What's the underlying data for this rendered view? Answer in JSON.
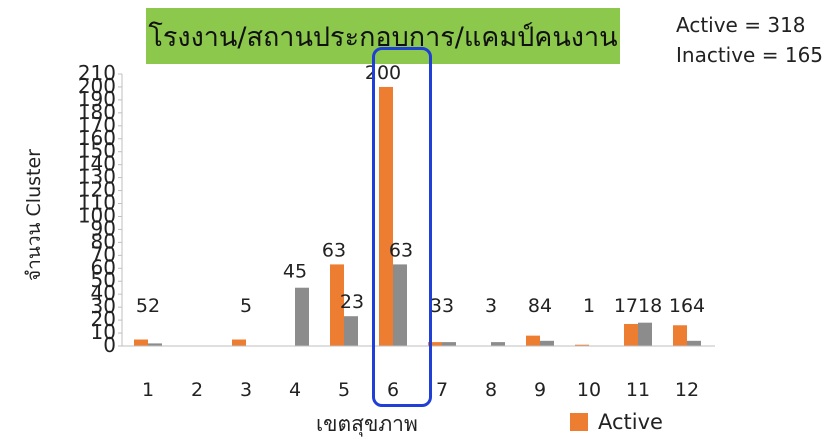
{
  "title": "โรงงาน/สถานประกอบการ/แคมป์คนงาน",
  "stats": {
    "active": "Active = 318",
    "inactive": "Inactive = 165"
  },
  "colors": {
    "title_bg": "#8cc84b",
    "active": "#ed7d31",
    "inactive": "#8c8c8c",
    "highlight": "#1f3fd6"
  },
  "chart_data": {
    "type": "bar",
    "title": "โรงงาน/สถานประกอบการ/แคมป์คนงาน",
    "xlabel": "เขตสุขภาพ",
    "ylabel": "จำนวน Cluster",
    "ylim": [
      0,
      210
    ],
    "yticks": [
      0,
      10,
      20,
      30,
      40,
      50,
      60,
      70,
      80,
      90,
      100,
      110,
      120,
      130,
      140,
      150,
      160,
      170,
      180,
      190,
      200,
      210
    ],
    "categories": [
      "1",
      "2",
      "3",
      "4",
      "5",
      "6",
      "7",
      "8",
      "9",
      "10",
      "11",
      "12"
    ],
    "series": [
      {
        "name": "Active",
        "values": [
          5,
          0,
          5,
          0,
          63,
          200,
          3,
          0,
          8,
          1,
          17,
          16
        ]
      },
      {
        "name": "",
        "values": [
          2,
          0,
          0,
          45,
          23,
          63,
          3,
          3,
          4,
          0,
          18,
          4
        ]
      }
    ],
    "data_labels": [
      "52",
      "",
      "5",
      "45",
      "63|23",
      "200|63",
      "33",
      "3",
      "84",
      "1",
      "1718",
      "164"
    ],
    "legend": {
      "position": "bottom-right",
      "entries": [
        "Active"
      ]
    },
    "grid": false
  }
}
